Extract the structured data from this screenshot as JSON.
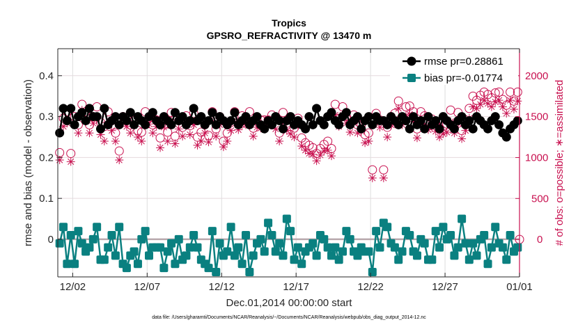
{
  "chart_data": {
    "type": "line",
    "title": "Tropics",
    "subtitle": "GPSRO_REFRACTIVITY @ 13470 m",
    "xlabel": "Dec.01,2014 00:00:00 start",
    "ylabel": "rmse and bias (model - observation)",
    "ylabel_right": "# of obs: o=possible; ∗=assimilated",
    "footnote": "data file: /Users/gharamti/Documents/NCAR/Reanalysis/~/Documents/NCAR/Reanalysis/webpub/obs_diag_output_2014-12.nc",
    "x_ticks": [
      "12/02",
      "12/07",
      "12/12",
      "12/17",
      "12/22",
      "12/27",
      "01/01"
    ],
    "x_tick_days": [
      1,
      6,
      11,
      16,
      21,
      26,
      31
    ],
    "xlim_days": [
      0,
      31
    ],
    "y_ticks": [
      "0",
      "0.1",
      "0.2",
      "0.3",
      "0.4"
    ],
    "y_tick_values": [
      0,
      0.1,
      0.2,
      0.3,
      0.4
    ],
    "ylim": [
      -0.092,
      0.466
    ],
    "y_right_ticks": [
      "0",
      "500",
      "1000",
      "1500",
      "2000"
    ],
    "y_right_tick_values": [
      0,
      500,
      1000,
      1500,
      2000
    ],
    "ylim_right": [
      -458,
      2330
    ],
    "grid": true,
    "legend_position": "top-right",
    "legend": [
      {
        "label": "rmse pr=0.28861",
        "color": "#000000",
        "marker": "circle"
      },
      {
        "label": "bias pr=-0.01774",
        "color": "#0a8080",
        "marker": "square"
      }
    ],
    "colors": {
      "rmse": "#000000",
      "bias": "#0a8080",
      "obs": "#c8104f",
      "zero_line": "#b8a8ac",
      "grid": "#e6d9dd"
    },
    "time_step_days": 0.25,
    "time_start_day": 0.125,
    "series": [
      {
        "name": "rmse",
        "values": [
          0.26,
          0.32,
          0.29,
          0.32,
          0.28,
          0.3,
          0.31,
          0.29,
          0.32,
          0.3,
          0.3,
          0.27,
          0.32,
          0.28,
          0.29,
          0.3,
          0.28,
          0.3,
          0.29,
          0.31,
          0.28,
          0.3,
          0.29,
          0.28,
          0.3,
          0.31,
          0.29,
          0.28,
          0.3,
          0.29,
          0.28,
          0.31,
          0.29,
          0.3,
          0.28,
          0.29,
          0.32,
          0.29,
          0.3,
          0.28,
          0.29,
          0.31,
          0.28,
          0.3,
          0.29,
          0.28,
          0.29,
          0.31,
          0.28,
          0.29,
          0.3,
          0.28,
          0.29,
          0.3,
          0.28,
          0.27,
          0.29,
          0.28,
          0.3,
          0.29,
          0.27,
          0.29,
          0.3,
          0.28,
          0.29,
          0.28,
          0.27,
          0.3,
          0.28,
          0.32,
          0.29,
          0.28,
          0.3,
          0.31,
          0.29,
          0.28,
          0.3,
          0.31,
          0.28,
          0.29,
          0.3,
          0.27,
          0.29,
          0.3,
          0.28,
          0.3,
          0.29,
          0.29,
          0.28,
          0.3,
          0.29,
          0.28,
          0.3,
          0.29,
          0.27,
          0.3,
          0.28,
          0.29,
          0.27,
          0.3,
          0.28,
          0.29,
          0.27,
          0.3,
          0.29,
          0.28,
          0.27,
          0.29,
          0.3,
          0.28,
          0.29,
          0.27,
          0.3,
          0.29,
          0.28,
          0.27,
          0.29,
          0.3,
          0.28,
          0.26,
          0.25,
          0.27,
          0.28,
          0.29
        ]
      },
      {
        "name": "bias",
        "values": [
          -0.01,
          0.03,
          -0.06,
          0.01,
          -0.06,
          0.02,
          -0.01,
          -0.03,
          -0.02,
          0.0,
          0.03,
          -0.05,
          -0.05,
          -0.02,
          0.01,
          -0.04,
          0.03,
          -0.06,
          -0.07,
          -0.04,
          -0.03,
          -0.06,
          0.0,
          0.02,
          -0.04,
          -0.02,
          -0.02,
          -0.02,
          -0.07,
          -0.03,
          -0.01,
          -0.06,
          0.0,
          -0.05,
          -0.04,
          -0.02,
          0.01,
          -0.02,
          -0.05,
          -0.06,
          -0.07,
          0.02,
          -0.08,
          -0.01,
          -0.04,
          -0.03,
          0.03,
          -0.04,
          -0.02,
          -0.06,
          0.01,
          -0.08,
          -0.04,
          -0.01,
          0.0,
          -0.03,
          0.04,
          0.01,
          -0.03,
          -0.01,
          -0.04,
          0.05,
          0.02,
          -0.05,
          -0.02,
          -0.06,
          -0.03,
          -0.02,
          -0.01,
          -0.04,
          0.01,
          0.0,
          -0.02,
          -0.04,
          -0.02,
          -0.05,
          -0.03,
          0.02,
          0.0,
          -0.03,
          -0.04,
          -0.02,
          -0.03,
          -0.03,
          -0.08,
          0.02,
          -0.02,
          0.04,
          0.03,
          -0.01,
          -0.02,
          -0.05,
          -0.03,
          0.02,
          0.01,
          -0.03,
          -0.04,
          0.0,
          -0.01,
          -0.05,
          -0.05,
          0.02,
          -0.02,
          0.03,
          0.0,
          0.01,
          -0.04,
          -0.02,
          0.05,
          -0.01,
          -0.05,
          -0.01,
          -0.04,
          0.0,
          0.01,
          -0.06,
          -0.02,
          0.03,
          -0.01,
          -0.02,
          -0.05,
          0.01,
          -0.03,
          -0.02
        ]
      },
      {
        "name": "obs_possible",
        "values": [
          1060,
          1480,
          1560,
          1050,
          1500,
          1400,
          1650,
          1560,
          1400,
          1500,
          1620,
          1430,
          1380,
          1560,
          1450,
          1300,
          1080,
          1500,
          1480,
          1400,
          1450,
          1330,
          1310,
          1560,
          1480,
          1400,
          1460,
          1240,
          1450,
          1310,
          1550,
          1260,
          1450,
          1370,
          1510,
          1390,
          1540,
          1250,
          1310,
          1400,
          1270,
          1560,
          1350,
          1500,
          1200,
          1300,
          1430,
          1560,
          1430,
          1510,
          1490,
          1560,
          1360,
          1460,
          1460,
          1460,
          1460,
          1520,
          1460,
          1300,
          1550,
          1420,
          1380,
          1360,
          1480,
          1240,
          1180,
          1150,
          1120,
          1050,
          1110,
          1160,
          1200,
          1110,
          1650,
          1480,
          1620,
          1500,
          1420,
          1520,
          1400,
          1400,
          1280,
          1300,
          850,
          1540,
          1460,
          850,
          1370,
          1500,
          1540,
          1690,
          1480,
          1620,
          1630,
          1560,
          1350,
          1560,
          1510,
          1450,
          1470,
          1420,
          1360,
          1380,
          1410,
          1580,
          1400,
          1550,
          1330,
          1420,
          1600,
          1750,
          1700,
          1760,
          1800,
          1770,
          1730,
          1790,
          1800,
          1710,
          1640,
          1800,
          1690,
          1800
        ]
      },
      {
        "name": "obs_assimilated",
        "values": [
          970,
          1380,
          1420,
          950,
          1400,
          1300,
          1580,
          1440,
          1300,
          1420,
          1480,
          1280,
          1200,
          1400,
          1330,
          1200,
          970,
          1420,
          1380,
          1300,
          1390,
          1250,
          1200,
          1430,
          1410,
          1300,
          1380,
          1120,
          1370,
          1200,
          1460,
          1170,
          1350,
          1260,
          1390,
          1280,
          1400,
          1150,
          1200,
          1300,
          1190,
          1440,
          1260,
          1400,
          1130,
          1200,
          1330,
          1430,
          1340,
          1400,
          1400,
          1440,
          1260,
          1370,
          1360,
          1390,
          1380,
          1420,
          1350,
          1200,
          1440,
          1330,
          1290,
          1250,
          1390,
          1140,
          1090,
          1050,
          1040,
          960,
          1030,
          1080,
          1090,
          1020,
          1520,
          1380,
          1520,
          1420,
          1310,
          1420,
          1300,
          1320,
          1180,
          1200,
          750,
          1450,
          1370,
          750,
          1250,
          1400,
          1410,
          1600,
          1400,
          1510,
          1530,
          1440,
          1240,
          1460,
          1400,
          1340,
          1370,
          1320,
          1250,
          1290,
          1310,
          1440,
          1300,
          1420,
          1230,
          1330,
          1480,
          1620,
          1600,
          1650,
          1700,
          1660,
          1620,
          1680,
          1700,
          1620,
          1540,
          1700,
          1590,
          1690
        ]
      }
    ]
  }
}
